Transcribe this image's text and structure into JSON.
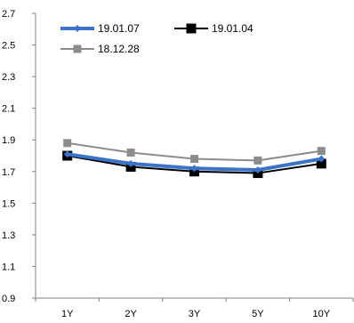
{
  "chart_data": {
    "type": "line",
    "title": "",
    "xlabel": "",
    "ylabel": "",
    "categories": [
      "1Y",
      "2Y",
      "3Y",
      "5Y",
      "10Y"
    ],
    "y_ticks": [
      "0.9",
      "1.1",
      "1.3",
      "1.5",
      "1.7",
      "1.9",
      "2.1",
      "2.3",
      "2.5",
      "2.7"
    ],
    "ylim": [
      0.9,
      2.7
    ],
    "grid": false,
    "legend_position": "top-left, inside plot",
    "series": [
      {
        "name": "19.01.07",
        "values": [
          1.81,
          1.75,
          1.72,
          1.71,
          1.78
        ],
        "color": "#3b73c8",
        "marker": "diamond",
        "line_width": "thick"
      },
      {
        "name": "19.01.04",
        "values": [
          1.8,
          1.73,
          1.7,
          1.69,
          1.75
        ],
        "color": "#000000",
        "marker": "square",
        "line_width": "thin"
      },
      {
        "name": "18.12.28",
        "values": [
          1.88,
          1.82,
          1.78,
          1.77,
          1.83
        ],
        "color": "#8c8c8c",
        "marker": "square",
        "line_width": "thin"
      }
    ]
  }
}
